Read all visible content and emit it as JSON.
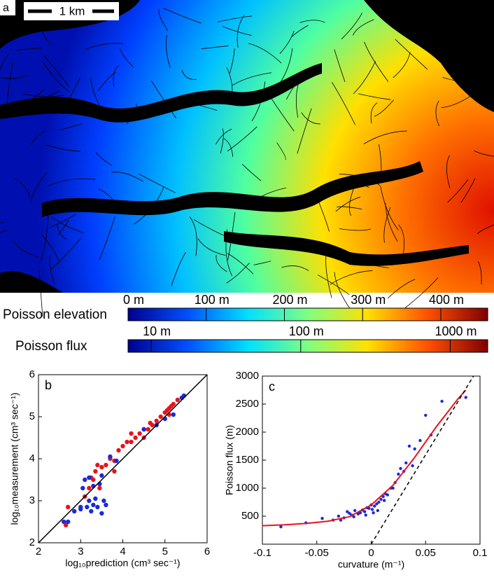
{
  "map": {
    "label": "a",
    "scale_bar": "1 km"
  },
  "colorbars": [
    {
      "title": "Poisson elevation",
      "log": false,
      "lim": [
        0,
        460
      ],
      "colors": [
        "#00008f",
        "#0050ff",
        "#00e0ff",
        "#80ff80",
        "#ffe000",
        "#ff5000",
        "#800000"
      ],
      "ticks": [
        {
          "value": 0,
          "label": "0 m"
        },
        {
          "value": 100,
          "label": "100 m"
        },
        {
          "value": 200,
          "label": "200 m"
        },
        {
          "value": 300,
          "label": "300 m"
        },
        {
          "value": 400,
          "label": "400 m"
        }
      ]
    },
    {
      "title": "Poisson flux",
      "log": true,
      "lim": [
        7,
        1780
      ],
      "colors": [
        "#00008f",
        "#0050ff",
        "#00e0ff",
        "#80ff80",
        "#ffe000",
        "#ff5000",
        "#800000"
      ],
      "ticks": [
        {
          "value": 10,
          "label": "10 m"
        },
        {
          "value": 100,
          "label": "100 m"
        },
        {
          "value": 1000,
          "label": "1000 m"
        }
      ]
    }
  ],
  "chart_data": [
    {
      "type": "scatter",
      "panel": "b",
      "xlabel": "log₁₀prediction  (cm³ sec⁻¹)",
      "ylabel": "log₁₀measurement  (cm³ sec⁻¹)",
      "xlim": [
        2,
        6
      ],
      "ylim": [
        2,
        6
      ],
      "xticks": [
        2,
        3,
        4,
        5,
        6
      ],
      "yticks": [
        2,
        3,
        4,
        5,
        6
      ],
      "series": [
        {
          "color": "#e8141c",
          "style": "points",
          "x": [
            2.65,
            2.7,
            3.1,
            3.2,
            3.3,
            3.35,
            3.4,
            3.5,
            3.45,
            3.6,
            3.7,
            3.8,
            3.9,
            4.0,
            4.1,
            4.2,
            4.3,
            4.4,
            4.5,
            4.6,
            4.7,
            4.8,
            4.9,
            5.0,
            5.05,
            5.1,
            5.15,
            5.2,
            5.3,
            4.5,
            4.2,
            3.8,
            3.25,
            4.65,
            5.1
          ],
          "values": [
            2.42,
            2.85,
            3.1,
            3.3,
            3.5,
            3.7,
            3.85,
            3.8,
            3.3,
            3.85,
            4.0,
            3.95,
            4.2,
            4.3,
            4.4,
            4.4,
            4.5,
            4.6,
            4.7,
            4.7,
            4.8,
            4.9,
            5.0,
            5.1,
            5.15,
            5.2,
            5.25,
            5.3,
            5.4,
            4.5,
            4.6,
            3.7,
            3.55,
            4.85,
            5.05
          ]
        },
        {
          "color": "#1a2bd6",
          "style": "points",
          "x": [
            2.6,
            2.7,
            2.85,
            3.0,
            3.05,
            3.1,
            3.15,
            3.2,
            3.25,
            3.3,
            3.35,
            3.4,
            3.45,
            3.5,
            3.55,
            3.6,
            3.2,
            3.3,
            3.5,
            3.7,
            3.85,
            4.5,
            4.8,
            5.0,
            5.2,
            5.4,
            5.45,
            3.0
          ],
          "values": [
            2.5,
            2.5,
            2.75,
            2.85,
            3.3,
            3.5,
            2.85,
            3.0,
            2.75,
            2.9,
            3.05,
            2.85,
            3.4,
            2.7,
            3.0,
            2.9,
            3.55,
            3.35,
            3.6,
            4.05,
            3.95,
            4.7,
            4.8,
            4.95,
            5.05,
            5.45,
            5.5,
            2.8
          ]
        },
        {
          "color": "#000000",
          "style": "line",
          "dash": false,
          "x": [
            2,
            6
          ],
          "values": [
            2,
            6
          ]
        }
      ]
    },
    {
      "type": "scatter",
      "panel": "c",
      "xlabel": "curvature  (m⁻¹)",
      "ylabel": "Poisson flux (m)",
      "xlim": [
        -0.1,
        0.1
      ],
      "ylim": [
        0,
        3000
      ],
      "xticks": [
        -0.1,
        -0.05,
        0,
        0.05,
        0.1
      ],
      "yticks": [
        500,
        1000,
        1500,
        2000,
        2500,
        3000
      ],
      "series": [
        {
          "color": "#1a2bd6",
          "style": "points",
          "x": [
            -0.083,
            -0.06,
            -0.045,
            -0.035,
            -0.03,
            -0.025,
            -0.02,
            -0.018,
            -0.015,
            -0.012,
            -0.01,
            -0.008,
            -0.006,
            -0.004,
            -0.002,
            0,
            0.001,
            0.003,
            0.005,
            0.007,
            0.009,
            0.011,
            0.013,
            0.015,
            0.018,
            0.02,
            0.022,
            0.025,
            0.027,
            0.03,
            0.032,
            0.035,
            0.038,
            0.04,
            0.045,
            0.05,
            0.055,
            0.065,
            0.087,
            -0.028,
            -0.022,
            -0.016,
            -0.005,
            0.002,
            0.006,
            0.012
          ],
          "values": [
            310,
            380,
            460,
            430,
            500,
            470,
            550,
            520,
            600,
            540,
            560,
            610,
            580,
            650,
            640,
            700,
            620,
            680,
            720,
            750,
            800,
            850,
            900,
            880,
            1000,
            1000,
            1100,
            1250,
            1350,
            1300,
            1450,
            1750,
            1400,
            1700,
            1850,
            2300,
            1950,
            2550,
            2620,
            430,
            580,
            490,
            520,
            560,
            600,
            780
          ]
        },
        {
          "color": "#e8141c",
          "style": "line",
          "dash": false,
          "x": [
            -0.1,
            -0.08,
            -0.06,
            -0.04,
            -0.02,
            0,
            0.02,
            0.04,
            0.06,
            0.08,
            0.087
          ],
          "values": [
            330,
            345,
            370,
            410,
            490,
            700,
            1050,
            1550,
            2100,
            2600,
            2750
          ]
        },
        {
          "color": "#000000",
          "style": "line",
          "dash": true,
          "x": [
            0,
            0.094
          ],
          "values": [
            0,
            3000
          ]
        }
      ]
    }
  ]
}
